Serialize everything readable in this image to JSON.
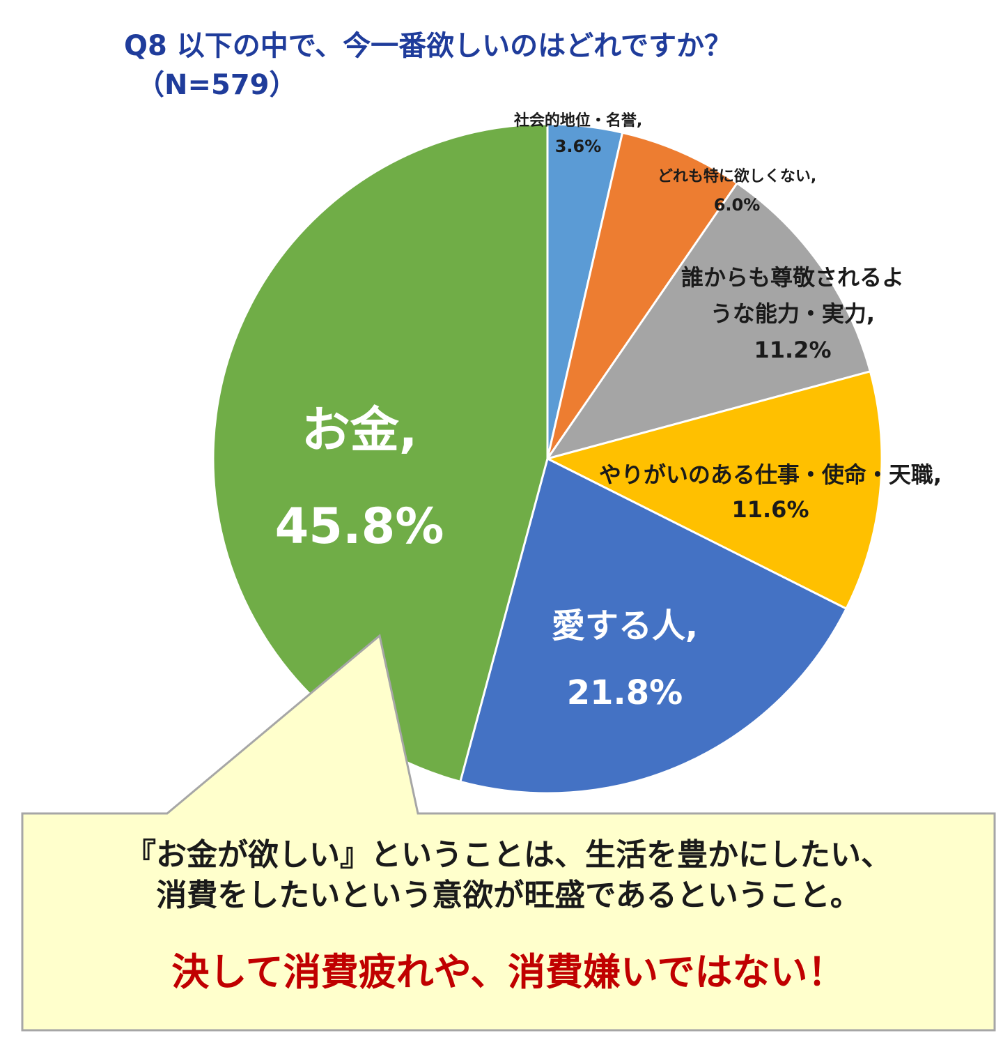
{
  "title": {
    "line1": "Q8 以下の中で、今一番欲しいのはどれですか？",
    "line2": "（N=579）"
  },
  "chart_data": {
    "type": "pie",
    "start_angle_deg": 0,
    "direction": "clockwise",
    "slices": [
      {
        "name": "社会的地位・名誉",
        "value": 3.6,
        "label": "3.6%",
        "color": "#5b9bd5"
      },
      {
        "name": "どれも特に欲しくない",
        "value": 6.0,
        "label": "6.0%",
        "color": "#ed7d31"
      },
      {
        "name": "誰からも尊敬されるような能力・実力",
        "value": 11.2,
        "label": "11.2%",
        "color": "#a5a5a5"
      },
      {
        "name": "やりがいのある仕事・使命・天職",
        "value": 11.6,
        "label": "11.6%",
        "color": "#ffc000"
      },
      {
        "name": "愛する人",
        "value": 21.8,
        "label": "21.8%",
        "color": "#4472c4"
      },
      {
        "name": "お金",
        "value": 45.8,
        "label": "45.8%",
        "color": "#70ad47"
      }
    ]
  },
  "labels": {
    "s0": {
      "name": "社会的地位・名誉,",
      "value": "3.6%"
    },
    "s1": {
      "name": "どれも特に欲しくない,",
      "value": "6.0%"
    },
    "s2": {
      "name1": "誰からも尊敬されるよ",
      "name2": "うな能力・実力,",
      "value": "11.2%"
    },
    "s3": {
      "name": "やりがいのある仕事・使命・天職,",
      "value": "11.6%"
    },
    "s4": {
      "name": "愛する人,",
      "value": "21.8%"
    },
    "s5": {
      "name": "お金,",
      "value": "45.8%"
    }
  },
  "callout": {
    "line1": "『お金が欲しい』ということは、生活を豊かにしたい、",
    "line2": "消費をしたいという意欲が旺盛であるということ。",
    "emphasis": "決して消費疲れや、消費嫌いではない！",
    "fill": "#ffffcc",
    "border": "#a6a6a6"
  }
}
